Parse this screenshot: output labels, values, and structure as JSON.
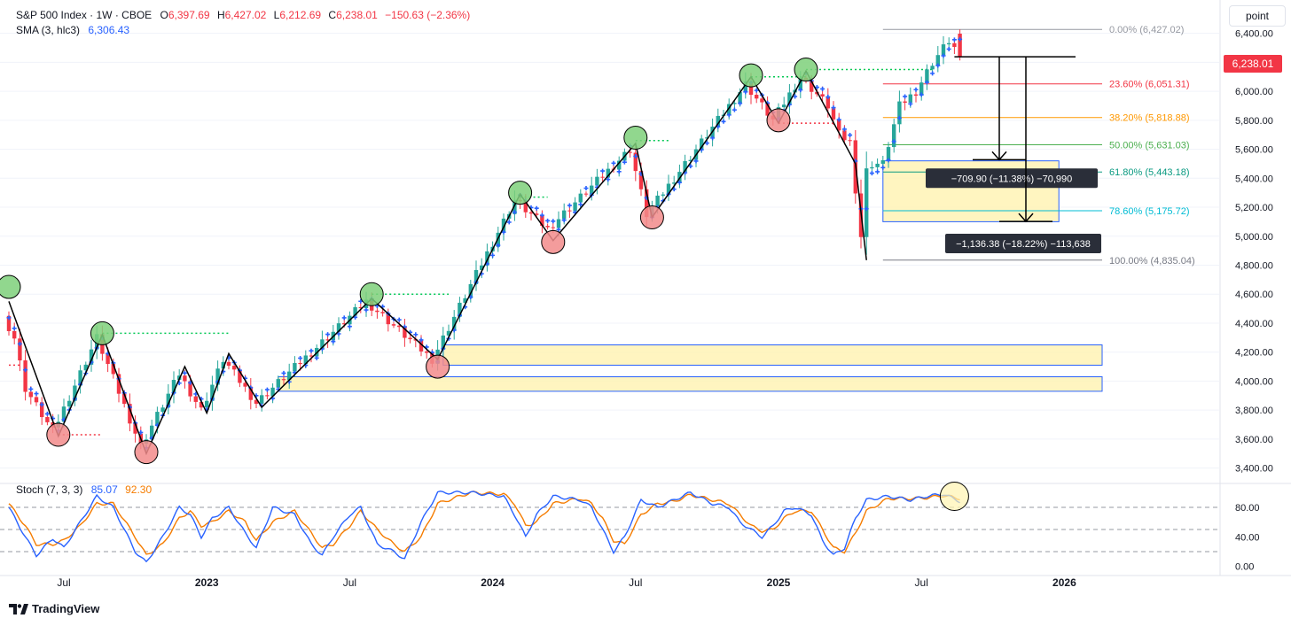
{
  "header": {
    "symbol": "S&P 500 Index · 1W · CBOE",
    "o_label": "O",
    "o_val": "6,397.69",
    "h_label": "H",
    "h_val": "6,427.02",
    "l_label": "L",
    "l_val": "6,212.69",
    "c_label": "C",
    "c_val": "6,238.01",
    "change": "−150.63 (−2.36%)",
    "sma_label": "SMA (3, hlc3)",
    "sma_val": "6,306.43",
    "stoch_label": "Stoch (7, 3, 3)",
    "stoch_k": "85.07",
    "stoch_d": "92.30"
  },
  "toolbar": {
    "unit_label": "point"
  },
  "last_price": "6,238.01",
  "brand": "TradingView",
  "colors": {
    "up": "#26a69a",
    "down": "#f23645",
    "sma": "#2962ff",
    "stoch_k": "#2962ff",
    "stoch_d": "#f57c00",
    "zone_fill": "#fff3b0",
    "zone_border": "#2962ff"
  },
  "chart_data": {
    "type": "candlestick",
    "title": "S&P 500 Index · 1W · CBOE",
    "price_range": [
      3300,
      6520
    ],
    "price_ticks": [
      "3,400.00",
      "3,600.00",
      "3,800.00",
      "4,000.00",
      "4,200.00",
      "4,400.00",
      "4,600.00",
      "4,800.00",
      "5,000.00",
      "5,200.00",
      "5,400.00",
      "5,600.00",
      "5,800.00",
      "6,000.00",
      "6,200.00",
      "6,400.00"
    ],
    "price_tick_values": [
      3400,
      3600,
      3800,
      4000,
      4200,
      4400,
      4600,
      4800,
      5000,
      5200,
      5400,
      5600,
      5800,
      6000,
      6200,
      6400
    ],
    "x_labels": [
      "Jul",
      "2023",
      "Jul",
      "2024",
      "Jul",
      "2025",
      "Jul",
      "2026"
    ],
    "x_label_weeks": [
      10,
      36,
      62,
      88,
      114,
      140,
      166,
      192
    ],
    "x_label_bold": [
      false,
      true,
      false,
      true,
      false,
      true,
      false,
      true
    ],
    "anchors": [
      [
        0,
        4450
      ],
      [
        2,
        4300
      ],
      [
        4,
        3950
      ],
      [
        9,
        3650
      ],
      [
        17,
        4300
      ],
      [
        25,
        3550
      ],
      [
        32,
        4050
      ],
      [
        36,
        3800
      ],
      [
        40,
        4150
      ],
      [
        46,
        3850
      ],
      [
        66,
        4550
      ],
      [
        78,
        4150
      ],
      [
        93,
        5250
      ],
      [
        99,
        5050
      ],
      [
        114,
        5600
      ],
      [
        117,
        5150
      ],
      [
        135,
        6050
      ],
      [
        140,
        5800
      ],
      [
        145,
        6100
      ],
      [
        150,
        5900
      ],
      [
        152,
        5700
      ],
      [
        154,
        5650
      ],
      [
        156,
        5000
      ],
      [
        157,
        5450
      ],
      [
        158,
        5500
      ],
      [
        160,
        5500
      ],
      [
        163,
        5900
      ],
      [
        166,
        6000
      ],
      [
        169,
        6200
      ],
      [
        172,
        6350
      ],
      [
        173,
        6300
      ]
    ],
    "last_candle": {
      "open": 6397.69,
      "high": 6427.02,
      "low": 6212.69,
      "close": 6238.01
    },
    "fibonacci": [
      {
        "label": "0.00% (6,427.02)",
        "value": 6427.02,
        "color": "#9598a1"
      },
      {
        "label": "23.60% (6,051.31)",
        "value": 6051.31,
        "color": "#f23645"
      },
      {
        "label": "38.20% (5,818.88)",
        "value": 5818.88,
        "color": "#ff9800"
      },
      {
        "label": "50.00% (5,631.03)",
        "value": 5631.03,
        "color": "#4caf50"
      },
      {
        "label": "61.80% (5,443.18)",
        "value": 5443.18,
        "color": "#089981"
      },
      {
        "label": "78.60% (5,175.72)",
        "value": 5175.72,
        "color": "#00bcd4"
      },
      {
        "label": "100.00% (4,835.04)",
        "value": 4835.04,
        "color": "#787b86"
      }
    ],
    "zones": [
      {
        "low": 4110,
        "high": 4250,
        "from_week": 79
      },
      {
        "low": 3930,
        "high": 4030,
        "from_week": 49
      },
      {
        "low": 5100,
        "high": 5520,
        "from_week": 159
      }
    ],
    "zigzag": [
      [
        0,
        4550
      ],
      [
        9,
        3620
      ],
      [
        17,
        4320
      ],
      [
        25,
        3500
      ],
      [
        32,
        4100
      ],
      [
        36,
        3780
      ],
      [
        40,
        4190
      ],
      [
        46,
        3820
      ],
      [
        66,
        4570
      ],
      [
        78,
        4150
      ],
      [
        93,
        5290
      ],
      [
        99,
        4970
      ],
      [
        114,
        5640
      ],
      [
        117,
        5130
      ],
      [
        135,
        6100
      ],
      [
        140,
        5780
      ],
      [
        145,
        6140
      ],
      [
        154,
        5500
      ],
      [
        156,
        4835
      ]
    ],
    "swing_highs": [
      [
        0,
        4650
      ],
      [
        17,
        4330
      ],
      [
        66,
        4600
      ],
      [
        93,
        5300
      ],
      [
        114,
        5680
      ],
      [
        135,
        6110
      ],
      [
        145,
        6150
      ]
    ],
    "swing_lows": [
      [
        9,
        3630
      ],
      [
        25,
        3510
      ],
      [
        78,
        4100
      ],
      [
        99,
        4960
      ],
      [
        117,
        5130
      ],
      [
        140,
        5800
      ]
    ],
    "breakout_lines": [
      {
        "from": 17,
        "to": 40,
        "value": 4330,
        "color": "#00c853"
      },
      {
        "from": 66,
        "to": 80,
        "value": 4600,
        "color": "#00c853"
      },
      {
        "from": 93,
        "to": 98,
        "value": 5270,
        "color": "#00c853"
      },
      {
        "from": 114,
        "to": 120,
        "value": 5660,
        "color": "#00c853"
      },
      {
        "from": 135,
        "to": 145,
        "value": 6100,
        "color": "#00c853"
      },
      {
        "from": 145,
        "to": 168,
        "value": 6150,
        "color": "#00c853"
      },
      {
        "from": 0,
        "to": 2,
        "value": 4110,
        "color": "#f23645"
      },
      {
        "from": 9,
        "to": 17,
        "value": 3630,
        "color": "#f23645"
      },
      {
        "from": 140,
        "to": 150,
        "value": 5780,
        "color": "#f23645"
      }
    ],
    "measures": [
      {
        "label": "−709.90 (−11.38%) −70,990",
        "from": 6238,
        "to": 5528,
        "week": 181,
        "label_value": 5400
      },
      {
        "label": "−1,136.38 (−18.22%) −113,638",
        "from": 6238,
        "to": 5102,
        "week": 185,
        "label_value": 4950
      }
    ],
    "measure_baseline": {
      "value": 6238,
      "from_week": 172,
      "to_week": 197
    },
    "stochastic": {
      "range": [
        -10,
        110
      ],
      "ticks": [
        "0.00",
        "40.00",
        "80.00"
      ],
      "tick_values": [
        0,
        40,
        80
      ],
      "levels": [
        20,
        50,
        80
      ],
      "k_anchors": [
        [
          0,
          80
        ],
        [
          3,
          40
        ],
        [
          5,
          15
        ],
        [
          8,
          38
        ],
        [
          10,
          25
        ],
        [
          13,
          60
        ],
        [
          16,
          95
        ],
        [
          19,
          80
        ],
        [
          23,
          20
        ],
        [
          25,
          5
        ],
        [
          28,
          40
        ],
        [
          31,
          80
        ],
        [
          33,
          70
        ],
        [
          35,
          40
        ],
        [
          37,
          65
        ],
        [
          40,
          80
        ],
        [
          43,
          45
        ],
        [
          45,
          25
        ],
        [
          48,
          80
        ],
        [
          52,
          70
        ],
        [
          55,
          30
        ],
        [
          57,
          15
        ],
        [
          59,
          40
        ],
        [
          62,
          70
        ],
        [
          64,
          80
        ],
        [
          67,
          30
        ],
        [
          70,
          20
        ],
        [
          72,
          10
        ],
        [
          75,
          60
        ],
        [
          78,
          100
        ],
        [
          84,
          100
        ],
        [
          90,
          95
        ],
        [
          92,
          70
        ],
        [
          94,
          40
        ],
        [
          96,
          70
        ],
        [
          99,
          95
        ],
        [
          104,
          90
        ],
        [
          106,
          80
        ],
        [
          108,
          50
        ],
        [
          110,
          20
        ],
        [
          112,
          40
        ],
        [
          115,
          90
        ],
        [
          118,
          80
        ],
        [
          121,
          90
        ],
        [
          124,
          100
        ],
        [
          128,
          85
        ],
        [
          131,
          80
        ],
        [
          133,
          60
        ],
        [
          135,
          50
        ],
        [
          137,
          40
        ],
        [
          139,
          55
        ],
        [
          141,
          75
        ],
        [
          143,
          80
        ],
        [
          146,
          70
        ],
        [
          148,
          35
        ],
        [
          150,
          15
        ],
        [
          152,
          25
        ],
        [
          154,
          65
        ],
        [
          156,
          90
        ],
        [
          160,
          95
        ],
        [
          164,
          90
        ],
        [
          167,
          95
        ],
        [
          170,
          98
        ],
        [
          173,
          88
        ]
      ],
      "d_anchors": [
        [
          0,
          85
        ],
        [
          3,
          55
        ],
        [
          5,
          30
        ],
        [
          8,
          30
        ],
        [
          10,
          35
        ],
        [
          13,
          55
        ],
        [
          16,
          85
        ],
        [
          19,
          85
        ],
        [
          23,
          40
        ],
        [
          25,
          15
        ],
        [
          28,
          30
        ],
        [
          31,
          65
        ],
        [
          33,
          75
        ],
        [
          35,
          55
        ],
        [
          37,
          60
        ],
        [
          40,
          75
        ],
        [
          43,
          60
        ],
        [
          45,
          35
        ],
        [
          48,
          60
        ],
        [
          52,
          75
        ],
        [
          55,
          45
        ],
        [
          57,
          25
        ],
        [
          59,
          30
        ],
        [
          62,
          55
        ],
        [
          64,
          75
        ],
        [
          67,
          50
        ],
        [
          70,
          30
        ],
        [
          72,
          20
        ],
        [
          75,
          40
        ],
        [
          78,
          85
        ],
        [
          84,
          100
        ],
        [
          90,
          98
        ],
        [
          92,
          85
        ],
        [
          94,
          55
        ],
        [
          96,
          60
        ],
        [
          99,
          85
        ],
        [
          104,
          92
        ],
        [
          106,
          85
        ],
        [
          108,
          65
        ],
        [
          110,
          35
        ],
        [
          112,
          30
        ],
        [
          115,
          70
        ],
        [
          118,
          85
        ],
        [
          121,
          88
        ],
        [
          124,
          97
        ],
        [
          128,
          90
        ],
        [
          131,
          85
        ],
        [
          133,
          70
        ],
        [
          135,
          55
        ],
        [
          137,
          48
        ],
        [
          139,
          50
        ],
        [
          141,
          65
        ],
        [
          143,
          75
        ],
        [
          146,
          75
        ],
        [
          148,
          50
        ],
        [
          150,
          25
        ],
        [
          152,
          20
        ],
        [
          154,
          45
        ],
        [
          156,
          75
        ],
        [
          160,
          92
        ],
        [
          164,
          92
        ],
        [
          167,
          93
        ],
        [
          170,
          96
        ],
        [
          173,
          92
        ]
      ]
    }
  }
}
